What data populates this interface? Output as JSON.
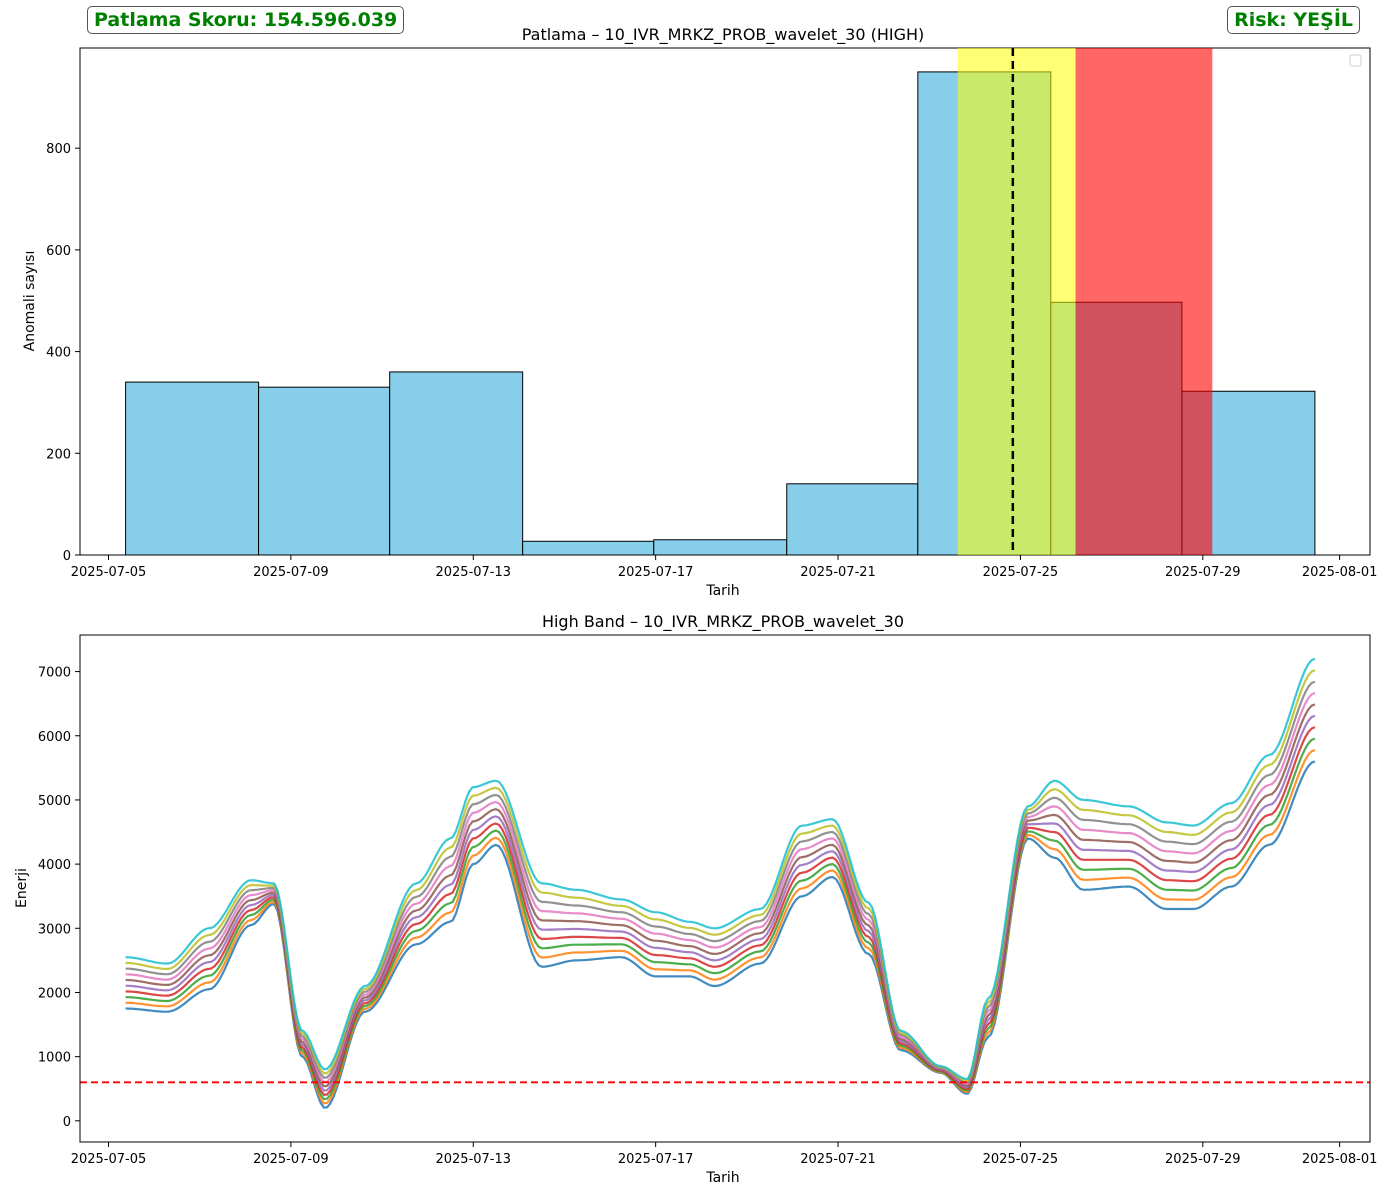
{
  "badges": {
    "score": "Patlama Skoru: 154.596.039",
    "risk": "Risk: YEŞİL",
    "color": "#008000"
  },
  "colors": {
    "bar_fill": "#87CEEB",
    "bar_edge": "#000000",
    "span_yellow": "#FFFF00",
    "span_red": "#FF0000",
    "vline": "#000000",
    "threshold": "#FF0000",
    "series_palette": [
      "#1f77b4",
      "#ff7f0e",
      "#2ca02c",
      "#d62728",
      "#9467bd",
      "#8c564b",
      "#e377c2",
      "#7f7f7f",
      "#bcbd22",
      "#17becf"
    ]
  },
  "chart_data": [
    {
      "type": "bar",
      "title": "Patlama – 10_IVR_MRKZ_PROB_wavelet_30 (HIGH)",
      "xlabel": "Tarih",
      "ylabel": "Anomali sayısı",
      "x_tick_labels": [
        "2025-07-05",
        "2025-07-09",
        "2025-07-13",
        "2025-07-17",
        "2025-07-21",
        "2025-07-25",
        "2025-07-29",
        "2025-08-01"
      ],
      "y_ticks": [
        0,
        200,
        400,
        600,
        800
      ],
      "xlim": [
        "2025-07-04T09:00",
        "2025-08-01T16:00"
      ],
      "ylim": [
        0,
        997
      ],
      "grid": false,
      "legend": "top-right (empty)",
      "bins": [
        {
          "start": "2025-07-05T09:00",
          "end": "2025-07-08T07:00",
          "count": 340
        },
        {
          "start": "2025-07-08T07:00",
          "end": "2025-07-11T04:00",
          "count": 330
        },
        {
          "start": "2025-07-11T04:00",
          "end": "2025-07-14T02:00",
          "count": 360
        },
        {
          "start": "2025-07-14T02:00",
          "end": "2025-07-16T23:00",
          "count": 27
        },
        {
          "start": "2025-07-16T23:00",
          "end": "2025-07-19T21:00",
          "count": 30
        },
        {
          "start": "2025-07-19T21:00",
          "end": "2025-07-22T18:00",
          "count": 140
        },
        {
          "start": "2025-07-22T18:00",
          "end": "2025-07-25T16:00",
          "count": 950
        },
        {
          "start": "2025-07-25T16:00",
          "end": "2025-07-28T13:00",
          "count": 497
        },
        {
          "start": "2025-07-28T13:00",
          "end": "2025-07-31T11:00",
          "count": 322
        }
      ],
      "spans": [
        {
          "label": "yellow",
          "start": "2025-07-23T15:00",
          "end": "2025-07-26T05:00",
          "color": "#FFFF00",
          "alpha": 0.55
        },
        {
          "label": "red",
          "start": "2025-07-26T05:00",
          "end": "2025-07-29T05:00",
          "color": "#FF0000",
          "alpha": 0.6
        }
      ],
      "vline": "2025-07-24T20:00"
    },
    {
      "type": "line",
      "title": "High Band – 10_IVR_MRKZ_PROB_wavelet_30",
      "xlabel": "Tarih",
      "ylabel": "Enerji",
      "x_tick_labels": [
        "2025-07-05",
        "2025-07-09",
        "2025-07-13",
        "2025-07-17",
        "2025-07-21",
        "2025-07-25",
        "2025-07-29",
        "2025-08-01"
      ],
      "y_ticks": [
        0,
        1000,
        2000,
        3000,
        4000,
        5000,
        6000,
        7000
      ],
      "xlim": [
        "2025-07-04T09:00",
        "2025-08-01T16:00"
      ],
      "ylim": [
        -330,
        7570
      ],
      "threshold": 600,
      "grid": false,
      "series_count": 10,
      "envelope": {
        "x": [
          "2025-07-05T09:00",
          "2025-07-06T07:00",
          "2025-07-07T05:00",
          "2025-07-08T03:00",
          "2025-07-08T15:00",
          "2025-07-09T06:00",
          "2025-07-09T18:00",
          "2025-07-10T15:00",
          "2025-07-11T18:00",
          "2025-07-12T12:00",
          "2025-07-13T00:00",
          "2025-07-13T12:00",
          "2025-07-14T12:00",
          "2025-07-15T06:00",
          "2025-07-16T06:00",
          "2025-07-17T00:00",
          "2025-07-17T18:00",
          "2025-07-18T07:00",
          "2025-07-19T07:00",
          "2025-07-20T05:00",
          "2025-07-20T21:00",
          "2025-07-21T16:00",
          "2025-07-22T09:00",
          "2025-07-23T06:00",
          "2025-07-23T20:00",
          "2025-07-24T07:00",
          "2025-07-25T04:00",
          "2025-07-25T18:00",
          "2025-07-26T09:00",
          "2025-07-27T09:00",
          "2025-07-28T05:00",
          "2025-07-28T19:00",
          "2025-07-29T15:00",
          "2025-07-30T11:00",
          "2025-07-31T11:00"
        ],
        "low": [
          1750,
          1700,
          2050,
          3050,
          3380,
          1000,
          200,
          1700,
          2750,
          3100,
          4000,
          4300,
          2400,
          2500,
          2550,
          2250,
          2250,
          2100,
          2450,
          3500,
          3800,
          2600,
          1100,
          750,
          420,
          1300,
          4400,
          4100,
          3600,
          3650,
          3300,
          3300,
          3650,
          4300,
          5600
        ],
        "high": [
          2550,
          2450,
          3000,
          3750,
          3700,
          1400,
          800,
          2100,
          3700,
          4400,
          5200,
          5300,
          3700,
          3600,
          3450,
          3250,
          3100,
          3000,
          3300,
          4600,
          4700,
          3400,
          1400,
          850,
          650,
          1900,
          4900,
          5300,
          5000,
          4900,
          4650,
          4600,
          4950,
          5700,
          7200
        ]
      }
    }
  ]
}
